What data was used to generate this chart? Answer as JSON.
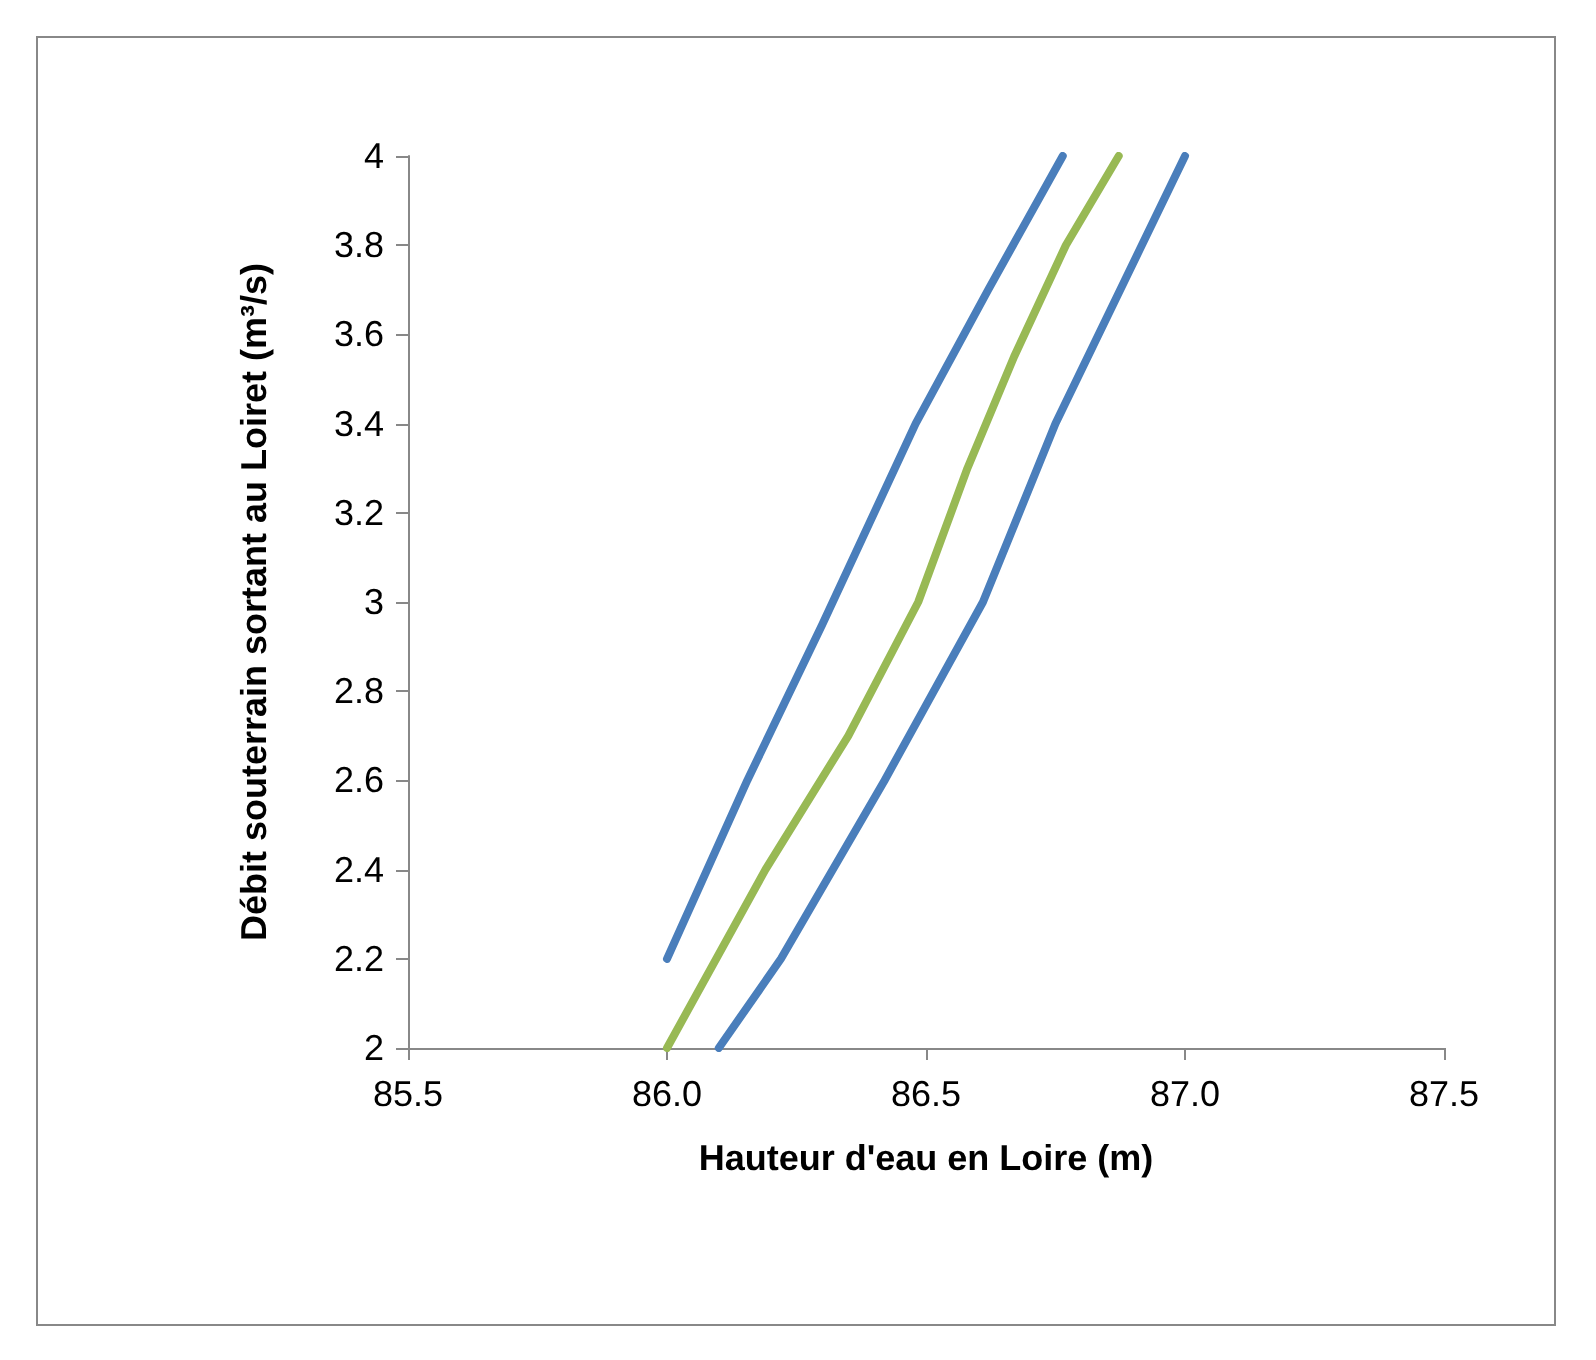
{
  "chart_data": {
    "type": "line",
    "xlabel": "Hauteur d'eau en Loire (m)",
    "ylabel": "Débit souterrain sortant au Loiret (m³/s)",
    "series": [
      {
        "color": "#4a7ebb",
        "x": [
          86.0,
          86.155,
          86.3,
          86.48,
          86.62,
          86.764
        ],
        "values": [
          2.2,
          2.6,
          2.95,
          3.4,
          3.7,
          4.0
        ]
      },
      {
        "color": "#98b954",
        "x": [
          86.0,
          86.19,
          86.35,
          86.485,
          86.58,
          86.67,
          86.77,
          86.872
        ],
        "values": [
          2.0,
          2.4,
          2.7,
          3.0,
          3.3,
          3.55,
          3.8,
          4.0
        ]
      },
      {
        "color": "#4a7ebb",
        "x": [
          86.1,
          86.22,
          86.42,
          86.61,
          86.75,
          87.0
        ],
        "values": [
          2.0,
          2.2,
          2.6,
          3.0,
          3.4,
          4.0
        ]
      }
    ],
    "xlim": [
      85.5,
      87.5
    ],
    "xticks": [
      85.5,
      {
        "value": 86,
        "label": "86.0"
      },
      86.5,
      {
        "value": 87,
        "label": "87.0"
      },
      87.5
    ],
    "ylim": [
      2,
      4
    ],
    "yticks": [
      2,
      2.2,
      2.4,
      2.6,
      2.8,
      3,
      3.2,
      3.4,
      3.6,
      3.8,
      4
    ],
    "grid": false,
    "marker": "none",
    "line_style": "solid"
  }
}
